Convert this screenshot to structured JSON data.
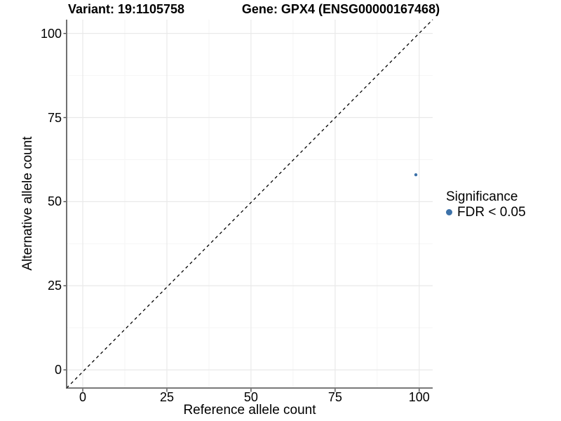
{
  "chart_data": {
    "type": "scatter",
    "titles": [
      "Variant: 19:1105758",
      "Gene: GPX4 (ENSG00000167468)"
    ],
    "xlabel": "Reference allele count",
    "ylabel": "Alternative allele count",
    "xlim": [
      -4.8,
      104.0
    ],
    "ylim": [
      -5.4,
      104.1
    ],
    "xticks": [
      0,
      25,
      50,
      75,
      100
    ],
    "yticks": [
      0,
      25,
      50,
      75,
      100
    ],
    "xticks_minor": [
      12.5,
      37.5,
      62.5,
      87.5
    ],
    "yticks_minor": [
      12.5,
      37.5,
      62.5,
      87.5
    ],
    "grid": true,
    "points": [
      {
        "x": 99,
        "y": 58,
        "series": "FDR < 0.05",
        "radius_px": 2.2
      }
    ],
    "reference_line": {
      "kind": "identity y=x",
      "style": "dashed",
      "color": "#000000"
    },
    "legend": {
      "position": "right",
      "title": "Significance",
      "items": [
        {
          "label": "FDR < 0.05",
          "color": "#3D72A9",
          "marker": "circle"
        }
      ]
    },
    "colors": {
      "point": "#3D72A9",
      "axis": "#4D4D4D",
      "grid_major": "#E9E9E9",
      "grid_minor": "#F5F5F5",
      "text": "#000000",
      "background": "#FFFFFF"
    }
  }
}
